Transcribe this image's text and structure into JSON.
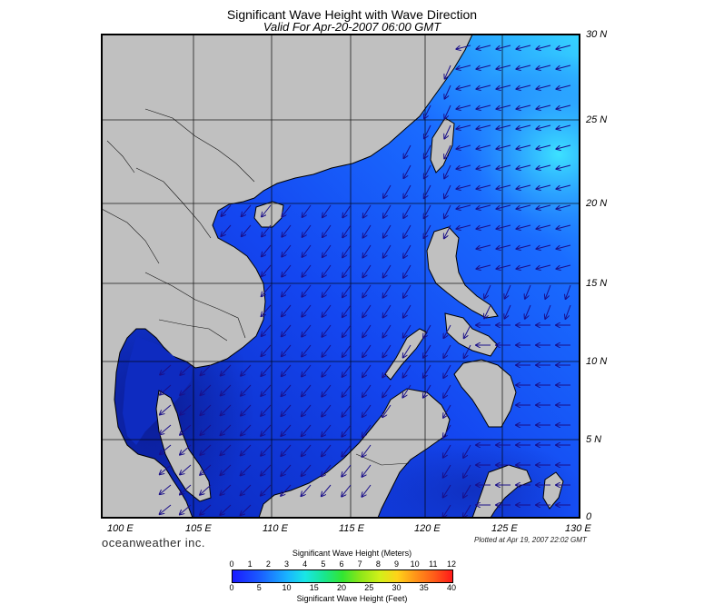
{
  "title": "Significant Wave Height with Wave Direction",
  "subtitle": "Valid For Apr-20-2007 06:00 GMT",
  "lat_labels": [
    "30 N",
    "25 N",
    "20 N",
    "15 N",
    "10 N",
    "5 N",
    "0"
  ],
  "lon_labels": [
    "100 E",
    "105 E",
    "110 E",
    "115 E",
    "120 E",
    "125 E",
    "130 E"
  ],
  "brand": "oceanweather inc.",
  "plotted": "Plotted at Apr 19, 2007 22:02 GMT",
  "colorbar": {
    "title_top": "Significant Wave Height (Meters)",
    "title_bottom": "Significant Wave Height (Feet)",
    "meters_ticks": [
      "0",
      "1",
      "2",
      "3",
      "4",
      "5",
      "6",
      "7",
      "8",
      "9",
      "10",
      "11",
      "12"
    ],
    "feet_ticks": [
      "0",
      "5",
      "10",
      "15",
      "20",
      "25",
      "30",
      "35",
      "40"
    ]
  },
  "colors": {
    "land": "#c0c0c0",
    "ocean_low": "#0a1f9e",
    "ocean_mid": "#1a52ff",
    "ocean_high": "#38d8ff",
    "arrow": "#1a0f88"
  },
  "map_extent": {
    "lon": [
      99,
      130
    ],
    "lat": [
      0,
      30
    ]
  },
  "wave_direction": "northeast monsoon swell toward southwest"
}
